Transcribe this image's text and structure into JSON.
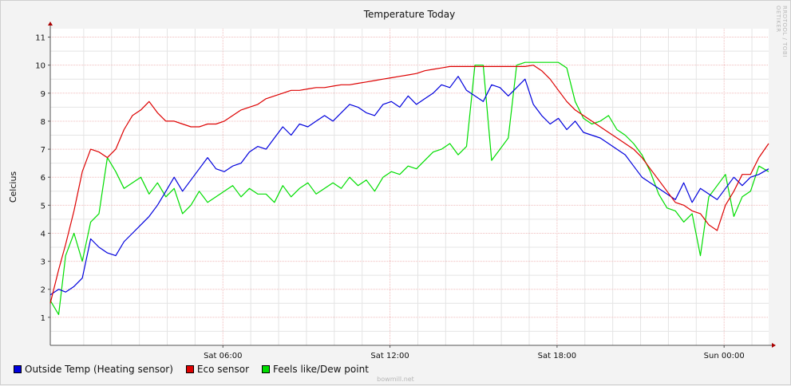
{
  "chart_data": {
    "type": "line",
    "title": "Temperature Today",
    "ylabel": "Celcius",
    "xlabel": "",
    "ylim": [
      0,
      11.3
    ],
    "yticks": [
      1,
      2,
      3,
      4,
      5,
      6,
      7,
      8,
      9,
      10,
      11
    ],
    "x_hours": [
      -0.2,
      0.1,
      0.35,
      0.65,
      0.95,
      1.25,
      1.55,
      1.85,
      2.15,
      2.45,
      2.75,
      3.05,
      3.35,
      3.65,
      3.95,
      4.25,
      4.55,
      4.85,
      5.15,
      5.45,
      5.75,
      6.05,
      6.35,
      6.65,
      6.95,
      7.25,
      7.55,
      7.85,
      8.15,
      8.45,
      8.75,
      9.05,
      9.35,
      9.65,
      9.95,
      10.25,
      10.55,
      10.85,
      11.15,
      11.45,
      11.75,
      12.05,
      12.35,
      12.65,
      12.95,
      13.25,
      13.55,
      13.85,
      14.15,
      14.45,
      14.75,
      15.05,
      15.35,
      15.65,
      15.95,
      16.25,
      16.55,
      16.85,
      17.15,
      17.45,
      17.75,
      18.05,
      18.35,
      18.65,
      18.95,
      19.25,
      19.55,
      19.85,
      20.15,
      20.45,
      20.75,
      21.05,
      21.35,
      21.65,
      21.95,
      22.25,
      22.55,
      22.85,
      23.15,
      23.45,
      23.75,
      24.05,
      24.35,
      24.65,
      24.95,
      25.25,
      25.6
    ],
    "x_ticks": [
      {
        "hour": 6,
        "label": "Sat 06:00"
      },
      {
        "hour": 12,
        "label": "Sat 12:00"
      },
      {
        "hour": 18,
        "label": "Sat 18:00"
      },
      {
        "hour": 24,
        "label": "Sun 00:00"
      }
    ],
    "series": [
      {
        "name": "Outside Temp (Heating sensor)",
        "color": "#0000dd",
        "values": [
          1.8,
          2.0,
          1.9,
          2.1,
          2.4,
          3.8,
          3.5,
          3.3,
          3.2,
          3.7,
          4.0,
          4.3,
          4.6,
          5.0,
          5.5,
          6.0,
          5.5,
          5.9,
          6.3,
          6.7,
          6.3,
          6.2,
          6.4,
          6.5,
          6.9,
          7.1,
          7.0,
          7.4,
          7.8,
          7.5,
          7.9,
          7.8,
          8.0,
          8.2,
          8.0,
          8.3,
          8.6,
          8.5,
          8.3,
          8.2,
          8.6,
          8.7,
          8.5,
          8.9,
          8.6,
          8.8,
          9.0,
          9.3,
          9.2,
          9.6,
          9.1,
          8.9,
          8.7,
          9.3,
          9.2,
          8.9,
          9.2,
          9.5,
          8.6,
          8.2,
          7.9,
          8.1,
          7.7,
          8.0,
          7.6,
          7.5,
          7.4,
          7.2,
          7.0,
          6.8,
          6.4,
          6.0,
          5.8,
          5.6,
          5.4,
          5.2,
          5.8,
          5.1,
          5.6,
          5.4,
          5.2,
          5.6,
          6.0,
          5.7,
          6.0,
          6.1,
          6.3
        ]
      },
      {
        "name": "Eco sensor",
        "color": "#dd0000",
        "values": [
          1.5,
          2.7,
          3.6,
          4.8,
          6.2,
          7.0,
          6.9,
          6.7,
          7.0,
          7.7,
          8.2,
          8.4,
          8.7,
          8.3,
          8.0,
          8.0,
          7.9,
          7.8,
          7.8,
          7.9,
          7.9,
          8.0,
          8.2,
          8.4,
          8.5,
          8.6,
          8.8,
          8.9,
          9.0,
          9.1,
          9.1,
          9.15,
          9.2,
          9.2,
          9.25,
          9.3,
          9.3,
          9.35,
          9.4,
          9.45,
          9.5,
          9.55,
          9.6,
          9.65,
          9.7,
          9.8,
          9.85,
          9.9,
          9.95,
          9.95,
          9.95,
          9.95,
          9.95,
          9.95,
          9.95,
          9.95,
          9.95,
          9.95,
          10.0,
          9.8,
          9.5,
          9.1,
          8.7,
          8.4,
          8.2,
          8.0,
          7.8,
          7.6,
          7.4,
          7.2,
          7.0,
          6.7,
          6.3,
          5.9,
          5.5,
          5.1,
          5.0,
          4.8,
          4.7,
          4.3,
          4.1,
          5.0,
          5.5,
          6.1,
          6.1,
          6.7,
          7.2
        ]
      },
      {
        "name": "Feels like/Dew point",
        "color": "#00dd00",
        "values": [
          1.6,
          1.1,
          3.2,
          4.0,
          3.0,
          4.4,
          4.7,
          6.7,
          6.2,
          5.6,
          5.8,
          6.0,
          5.4,
          5.8,
          5.3,
          5.6,
          4.7,
          5.0,
          5.5,
          5.1,
          5.3,
          5.5,
          5.7,
          5.3,
          5.6,
          5.4,
          5.4,
          5.1,
          5.7,
          5.3,
          5.6,
          5.8,
          5.4,
          5.6,
          5.8,
          5.6,
          6.0,
          5.7,
          5.9,
          5.5,
          6.0,
          6.2,
          6.1,
          6.4,
          6.3,
          6.6,
          6.9,
          7.0,
          7.2,
          6.8,
          7.1,
          10.0,
          10.0,
          6.6,
          7.0,
          7.4,
          10.0,
          10.1,
          10.1,
          10.1,
          10.1,
          10.1,
          9.9,
          8.7,
          8.1,
          7.9,
          8.0,
          8.2,
          7.7,
          7.5,
          7.2,
          6.8,
          6.2,
          5.4,
          4.9,
          4.8,
          4.4,
          4.7,
          3.2,
          5.3,
          5.7,
          6.1,
          4.6,
          5.3,
          5.5,
          6.4,
          6.2
        ]
      }
    ],
    "grid": true,
    "legend_position": "bottom-left"
  },
  "watermark": "bowmill.net",
  "side_credit": "RRDTOOL / TOBI OETIKER"
}
